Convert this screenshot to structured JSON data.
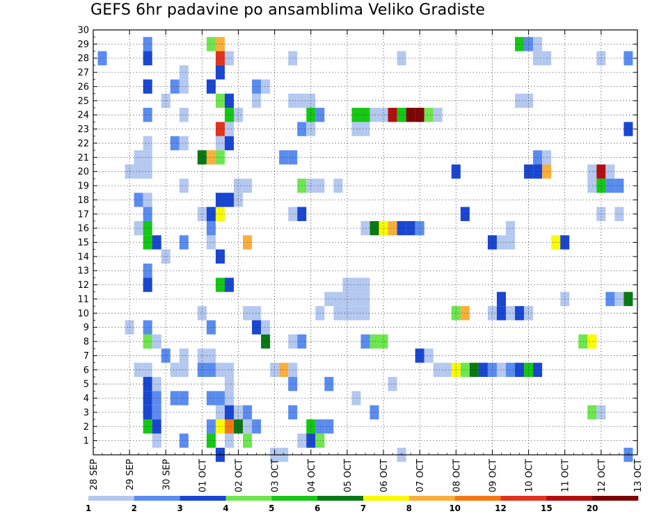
{
  "chart_data": {
    "type": "heatmap",
    "title": "GEFS 6hr padavine po ansamblima Veliko Gradiste",
    "x_tick_labels": [
      "28 SEP",
      "29 SEP",
      "30 SEP",
      "01 OCT",
      "02 OCT",
      "03 OCT",
      "04 OCT",
      "05 OCT",
      "06 OCT",
      "07 OCT",
      "08 OCT",
      "09 OCT",
      "10 OCT",
      "11 OCT",
      "12 OCT",
      "13 OCT"
    ],
    "xlim_days": [
      0,
      15
    ],
    "time_step_hours": 6,
    "ylim": [
      0,
      30
    ],
    "y_ticks": [
      1,
      2,
      3,
      4,
      5,
      6,
      7,
      8,
      9,
      10,
      11,
      12,
      13,
      14,
      15,
      16,
      17,
      18,
      19,
      20,
      21,
      22,
      23,
      24,
      25,
      26,
      27,
      28,
      29,
      30
    ],
    "grid": true,
    "colorbar": {
      "tick_labels": [
        "1",
        "2",
        "3",
        "4",
        "5",
        "6",
        "7",
        "8",
        "10",
        "12",
        "15",
        "20"
      ],
      "colors": [
        "#b4c8f0",
        "#5a8cf0",
        "#1a46d2",
        "#6ee650",
        "#14c814",
        "#0a7814",
        "#fafa00",
        "#faaf3c",
        "#f57814",
        "#e1321e",
        "#b40f0f",
        "#7d0505"
      ]
    },
    "cells": [
      {
        "x": 1.75,
        "y": 1,
        "c": 1
      },
      {
        "x": 2.5,
        "y": 1,
        "c": 2
      },
      {
        "x": 3.25,
        "y": 1,
        "c": 5
      },
      {
        "x": 3.75,
        "y": 1,
        "c": 1
      },
      {
        "x": 4.25,
        "y": 1,
        "c": 4
      },
      {
        "x": 5.75,
        "y": 1,
        "c": 1
      },
      {
        "x": 6,
        "y": 1,
        "c": 3
      },
      {
        "x": 6.25,
        "y": 1,
        "c": 4
      },
      {
        "x": 1.5,
        "y": 2,
        "c": 5
      },
      {
        "x": 1.75,
        "y": 2,
        "c": 3
      },
      {
        "x": 3.25,
        "y": 2,
        "c": 2
      },
      {
        "x": 3.5,
        "y": 2,
        "c": 7
      },
      {
        "x": 3.75,
        "y": 2,
        "c": 9
      },
      {
        "x": 4,
        "y": 2,
        "c": 6
      },
      {
        "x": 4.25,
        "y": 2,
        "c": 1
      },
      {
        "x": 4.5,
        "y": 2,
        "c": 2
      },
      {
        "x": 6,
        "y": 2,
        "c": 5
      },
      {
        "x": 6.25,
        "y": 2,
        "c": 2
      },
      {
        "x": 6.5,
        "y": 2,
        "c": 2
      },
      {
        "x": 1.5,
        "y": 3,
        "c": 3
      },
      {
        "x": 1.75,
        "y": 3,
        "c": 2
      },
      {
        "x": 3.5,
        "y": 3,
        "c": 1
      },
      {
        "x": 3.75,
        "y": 3,
        "c": 3
      },
      {
        "x": 4,
        "y": 3,
        "c": 1
      },
      {
        "x": 4.25,
        "y": 3,
        "c": 2
      },
      {
        "x": 5.5,
        "y": 3,
        "c": 2
      },
      {
        "x": 7.75,
        "y": 3,
        "c": 2
      },
      {
        "x": 13.75,
        "y": 3,
        "c": 4
      },
      {
        "x": 14,
        "y": 3,
        "c": 1
      },
      {
        "x": 1.5,
        "y": 4,
        "c": 3
      },
      {
        "x": 1.75,
        "y": 4,
        "c": 2
      },
      {
        "x": 2.25,
        "y": 4,
        "c": 2
      },
      {
        "x": 2.5,
        "y": 4,
        "c": 2
      },
      {
        "x": 3.25,
        "y": 4,
        "c": 2
      },
      {
        "x": 3.5,
        "y": 4,
        "c": 2
      },
      {
        "x": 3.75,
        "y": 4,
        "c": 1
      },
      {
        "x": 7.25,
        "y": 4,
        "c": 1
      },
      {
        "x": 1.5,
        "y": 5,
        "c": 3
      },
      {
        "x": 1.75,
        "y": 5,
        "c": 1
      },
      {
        "x": 3.75,
        "y": 5,
        "c": 1
      },
      {
        "x": 5.5,
        "y": 5,
        "c": 2
      },
      {
        "x": 6.5,
        "y": 5,
        "c": 2
      },
      {
        "x": 8.25,
        "y": 5,
        "c": 1
      },
      {
        "x": 1.25,
        "y": 6,
        "c": 1
      },
      {
        "x": 1.5,
        "y": 6,
        "c": 1
      },
      {
        "x": 2.25,
        "y": 6,
        "c": 1
      },
      {
        "x": 2.5,
        "y": 6,
        "c": 1
      },
      {
        "x": 3,
        "y": 6,
        "c": 2
      },
      {
        "x": 3.25,
        "y": 6,
        "c": 2
      },
      {
        "x": 3.5,
        "y": 6,
        "c": 1
      },
      {
        "x": 3.75,
        "y": 6,
        "c": 1
      },
      {
        "x": 5,
        "y": 6,
        "c": 1
      },
      {
        "x": 5.25,
        "y": 6,
        "c": 8
      },
      {
        "x": 5.5,
        "y": 6,
        "c": 1
      },
      {
        "x": 9.5,
        "y": 6,
        "c": 1
      },
      {
        "x": 9.75,
        "y": 6,
        "c": 1
      },
      {
        "x": 10,
        "y": 6,
        "c": 7
      },
      {
        "x": 10.25,
        "y": 6,
        "c": 4
      },
      {
        "x": 10.5,
        "y": 6,
        "c": 6
      },
      {
        "x": 10.75,
        "y": 6,
        "c": 3
      },
      {
        "x": 11,
        "y": 6,
        "c": 2
      },
      {
        "x": 11.25,
        "y": 6,
        "c": 1
      },
      {
        "x": 11.5,
        "y": 6,
        "c": 2
      },
      {
        "x": 11.75,
        "y": 6,
        "c": 3
      },
      {
        "x": 12,
        "y": 6,
        "c": 5
      },
      {
        "x": 12.25,
        "y": 6,
        "c": 3
      },
      {
        "x": 2,
        "y": 7,
        "c": 2
      },
      {
        "x": 2.5,
        "y": 7,
        "c": 1
      },
      {
        "x": 3,
        "y": 7,
        "c": 1
      },
      {
        "x": 3.25,
        "y": 7,
        "c": 1
      },
      {
        "x": 9,
        "y": 7,
        "c": 3
      },
      {
        "x": 9.25,
        "y": 7,
        "c": 1
      },
      {
        "x": 1.5,
        "y": 8,
        "c": 4
      },
      {
        "x": 1.75,
        "y": 8,
        "c": 1
      },
      {
        "x": 4.75,
        "y": 8,
        "c": 6
      },
      {
        "x": 5.5,
        "y": 8,
        "c": 1
      },
      {
        "x": 5.75,
        "y": 8,
        "c": 2
      },
      {
        "x": 7.5,
        "y": 8,
        "c": 2
      },
      {
        "x": 7.75,
        "y": 8,
        "c": 4
      },
      {
        "x": 8,
        "y": 8,
        "c": 4
      },
      {
        "x": 13.5,
        "y": 8,
        "c": 4
      },
      {
        "x": 13.75,
        "y": 8,
        "c": 7
      },
      {
        "x": 1,
        "y": 9,
        "c": 1
      },
      {
        "x": 1.5,
        "y": 9,
        "c": 2
      },
      {
        "x": 3.25,
        "y": 9,
        "c": 2
      },
      {
        "x": 4.5,
        "y": 9,
        "c": 3
      },
      {
        "x": 4.75,
        "y": 9,
        "c": 1
      },
      {
        "x": 3,
        "y": 10,
        "c": 1
      },
      {
        "x": 4.25,
        "y": 10,
        "c": 1
      },
      {
        "x": 4.5,
        "y": 10,
        "c": 1
      },
      {
        "x": 6.25,
        "y": 10,
        "c": 1
      },
      {
        "x": 6.75,
        "y": 10,
        "c": 1
      },
      {
        "x": 7,
        "y": 10,
        "c": 1
      },
      {
        "x": 7.25,
        "y": 10,
        "c": 1
      },
      {
        "x": 7.5,
        "y": 10,
        "c": 1
      },
      {
        "x": 10,
        "y": 10,
        "c": 4
      },
      {
        "x": 10.25,
        "y": 10,
        "c": 8
      },
      {
        "x": 11,
        "y": 10,
        "c": 1
      },
      {
        "x": 11.25,
        "y": 10,
        "c": 3
      },
      {
        "x": 11.5,
        "y": 10,
        "c": 1
      },
      {
        "x": 11.75,
        "y": 10,
        "c": 3
      },
      {
        "x": 12,
        "y": 10,
        "c": 1
      },
      {
        "x": 6.5,
        "y": 11,
        "c": 1
      },
      {
        "x": 6.75,
        "y": 11,
        "c": 1
      },
      {
        "x": 7,
        "y": 11,
        "c": 1
      },
      {
        "x": 7.25,
        "y": 11,
        "c": 1
      },
      {
        "x": 7.5,
        "y": 11,
        "c": 1
      },
      {
        "x": 11.25,
        "y": 11,
        "c": 3
      },
      {
        "x": 13,
        "y": 11,
        "c": 1
      },
      {
        "x": 14.25,
        "y": 11,
        "c": 2
      },
      {
        "x": 14.5,
        "y": 11,
        "c": 1
      },
      {
        "x": 14.75,
        "y": 11,
        "c": 6
      },
      {
        "x": 1.5,
        "y": 12,
        "c": 3
      },
      {
        "x": 3.5,
        "y": 12,
        "c": 5
      },
      {
        "x": 3.75,
        "y": 12,
        "c": 3
      },
      {
        "x": 7,
        "y": 12,
        "c": 1
      },
      {
        "x": 7.25,
        "y": 12,
        "c": 1
      },
      {
        "x": 7.5,
        "y": 12,
        "c": 1
      },
      {
        "x": 1.5,
        "y": 13,
        "c": 2
      },
      {
        "x": 2,
        "y": 14,
        "c": 1
      },
      {
        "x": 3.5,
        "y": 14,
        "c": 3
      },
      {
        "x": 1.5,
        "y": 15,
        "c": 5
      },
      {
        "x": 1.75,
        "y": 15,
        "c": 3
      },
      {
        "x": 2.5,
        "y": 15,
        "c": 2
      },
      {
        "x": 3.25,
        "y": 15,
        "c": 1
      },
      {
        "x": 4.25,
        "y": 15,
        "c": 8
      },
      {
        "x": 11,
        "y": 15,
        "c": 3
      },
      {
        "x": 11.25,
        "y": 15,
        "c": 1
      },
      {
        "x": 11.5,
        "y": 15,
        "c": 1
      },
      {
        "x": 12.75,
        "y": 15,
        "c": 7
      },
      {
        "x": 13,
        "y": 15,
        "c": 3
      },
      {
        "x": 1.25,
        "y": 16,
        "c": 1
      },
      {
        "x": 1.5,
        "y": 16,
        "c": 5
      },
      {
        "x": 3.25,
        "y": 16,
        "c": 2
      },
      {
        "x": 7.75,
        "y": 16,
        "c": 6
      },
      {
        "x": 8,
        "y": 16,
        "c": 7
      },
      {
        "x": 8.25,
        "y": 16,
        "c": 8
      },
      {
        "x": 8.5,
        "y": 16,
        "c": 3
      },
      {
        "x": 8.75,
        "y": 16,
        "c": 3
      },
      {
        "x": 9,
        "y": 16,
        "c": 2
      },
      {
        "x": 7.5,
        "y": 16,
        "c": 1
      },
      {
        "x": 11.5,
        "y": 16,
        "c": 1
      },
      {
        "x": 1.5,
        "y": 17,
        "c": 2
      },
      {
        "x": 3,
        "y": 17,
        "c": 1
      },
      {
        "x": 3.25,
        "y": 17,
        "c": 3
      },
      {
        "x": 3.5,
        "y": 17,
        "c": 7
      },
      {
        "x": 5.5,
        "y": 17,
        "c": 1
      },
      {
        "x": 5.75,
        "y": 17,
        "c": 3
      },
      {
        "x": 10.25,
        "y": 17,
        "c": 3
      },
      {
        "x": 14,
        "y": 17,
        "c": 1
      },
      {
        "x": 14.5,
        "y": 17,
        "c": 1
      },
      {
        "x": 1.25,
        "y": 18,
        "c": 2
      },
      {
        "x": 1.5,
        "y": 18,
        "c": 1
      },
      {
        "x": 3.5,
        "y": 18,
        "c": 3
      },
      {
        "x": 3.75,
        "y": 18,
        "c": 3
      },
      {
        "x": 4,
        "y": 18,
        "c": 1
      },
      {
        "x": 2.5,
        "y": 19,
        "c": 1
      },
      {
        "x": 4,
        "y": 19,
        "c": 1
      },
      {
        "x": 4.25,
        "y": 19,
        "c": 1
      },
      {
        "x": 5.75,
        "y": 19,
        "c": 4
      },
      {
        "x": 6,
        "y": 19,
        "c": 1
      },
      {
        "x": 6.25,
        "y": 19,
        "c": 1
      },
      {
        "x": 6.75,
        "y": 19,
        "c": 1
      },
      {
        "x": 13.75,
        "y": 19,
        "c": 1
      },
      {
        "x": 14,
        "y": 19,
        "c": 5
      },
      {
        "x": 14.25,
        "y": 19,
        "c": 2
      },
      {
        "x": 14.5,
        "y": 19,
        "c": 2
      },
      {
        "x": 1,
        "y": 20,
        "c": 1
      },
      {
        "x": 1.25,
        "y": 20,
        "c": 1
      },
      {
        "x": 1.5,
        "y": 20,
        "c": 1
      },
      {
        "x": 10,
        "y": 20,
        "c": 3
      },
      {
        "x": 12,
        "y": 20,
        "c": 3
      },
      {
        "x": 12.25,
        "y": 20,
        "c": 3
      },
      {
        "x": 12.5,
        "y": 20,
        "c": 8
      },
      {
        "x": 13.75,
        "y": 20,
        "c": 1
      },
      {
        "x": 14,
        "y": 20,
        "c": 11
      },
      {
        "x": 14.25,
        "y": 20,
        "c": 1
      },
      {
        "x": 1.25,
        "y": 21,
        "c": 1
      },
      {
        "x": 1.5,
        "y": 21,
        "c": 1
      },
      {
        "x": 3,
        "y": 21,
        "c": 6
      },
      {
        "x": 3.25,
        "y": 21,
        "c": 8
      },
      {
        "x": 3.5,
        "y": 21,
        "c": 4
      },
      {
        "x": 5.25,
        "y": 21,
        "c": 2
      },
      {
        "x": 5.5,
        "y": 21,
        "c": 2
      },
      {
        "x": 12.25,
        "y": 21,
        "c": 2
      },
      {
        "x": 12.5,
        "y": 21,
        "c": 1
      },
      {
        "x": 1.5,
        "y": 22,
        "c": 1
      },
      {
        "x": 2.25,
        "y": 22,
        "c": 2
      },
      {
        "x": 2.5,
        "y": 22,
        "c": 1
      },
      {
        "x": 3.5,
        "y": 22,
        "c": 1
      },
      {
        "x": 3.75,
        "y": 22,
        "c": 3
      },
      {
        "x": 3.5,
        "y": 23,
        "c": 10
      },
      {
        "x": 3.75,
        "y": 23,
        "c": 1
      },
      {
        "x": 5.75,
        "y": 23,
        "c": 2
      },
      {
        "x": 6,
        "y": 23,
        "c": 1
      },
      {
        "x": 7.25,
        "y": 23,
        "c": 1
      },
      {
        "x": 7.5,
        "y": 23,
        "c": 1
      },
      {
        "x": 14.75,
        "y": 23,
        "c": 3
      },
      {
        "x": 1.5,
        "y": 24,
        "c": 2
      },
      {
        "x": 2.5,
        "y": 24,
        "c": 1
      },
      {
        "x": 3.75,
        "y": 24,
        "c": 5
      },
      {
        "x": 4,
        "y": 24,
        "c": 1
      },
      {
        "x": 6,
        "y": 24,
        "c": 5
      },
      {
        "x": 6.25,
        "y": 24,
        "c": 2
      },
      {
        "x": 7.25,
        "y": 24,
        "c": 5
      },
      {
        "x": 7.5,
        "y": 24,
        "c": 5
      },
      {
        "x": 7.75,
        "y": 24,
        "c": 1
      },
      {
        "x": 8,
        "y": 24,
        "c": 1
      },
      {
        "x": 8.25,
        "y": 24,
        "c": 11
      },
      {
        "x": 8.5,
        "y": 24,
        "c": 5
      },
      {
        "x": 8.75,
        "y": 24,
        "c": 12
      },
      {
        "x": 9,
        "y": 24,
        "c": 12
      },
      {
        "x": 9.25,
        "y": 24,
        "c": 4
      },
      {
        "x": 9.5,
        "y": 24,
        "c": 1
      },
      {
        "x": 2,
        "y": 25,
        "c": 1
      },
      {
        "x": 3.5,
        "y": 25,
        "c": 4
      },
      {
        "x": 3.75,
        "y": 25,
        "c": 3
      },
      {
        "x": 4.5,
        "y": 25,
        "c": 1
      },
      {
        "x": 5.5,
        "y": 25,
        "c": 1
      },
      {
        "x": 5.75,
        "y": 25,
        "c": 1
      },
      {
        "x": 6,
        "y": 25,
        "c": 1
      },
      {
        "x": 11.75,
        "y": 25,
        "c": 1
      },
      {
        "x": 12,
        "y": 25,
        "c": 1
      },
      {
        "x": 1.5,
        "y": 26,
        "c": 3
      },
      {
        "x": 2.25,
        "y": 26,
        "c": 2
      },
      {
        "x": 2.5,
        "y": 26,
        "c": 1
      },
      {
        "x": 3.25,
        "y": 26,
        "c": 3
      },
      {
        "x": 4.5,
        "y": 26,
        "c": 2
      },
      {
        "x": 4.75,
        "y": 26,
        "c": 1
      },
      {
        "x": 2.5,
        "y": 27,
        "c": 1
      },
      {
        "x": 3.5,
        "y": 27,
        "c": 3
      },
      {
        "x": 0.25,
        "y": 28,
        "c": 2
      },
      {
        "x": 1.5,
        "y": 28,
        "c": 3
      },
      {
        "x": 3.5,
        "y": 28,
        "c": 10
      },
      {
        "x": 3.75,
        "y": 28,
        "c": 1
      },
      {
        "x": 5.5,
        "y": 28,
        "c": 1
      },
      {
        "x": 8.5,
        "y": 28,
        "c": 1
      },
      {
        "x": 12.25,
        "y": 28,
        "c": 1
      },
      {
        "x": 12.5,
        "y": 28,
        "c": 1
      },
      {
        "x": 14,
        "y": 28,
        "c": 1
      },
      {
        "x": 14.75,
        "y": 28,
        "c": 2
      },
      {
        "x": 1.5,
        "y": 29,
        "c": 2
      },
      {
        "x": 3.25,
        "y": 29,
        "c": 4
      },
      {
        "x": 3.5,
        "y": 29,
        "c": 8
      },
      {
        "x": 11.75,
        "y": 29,
        "c": 5
      },
      {
        "x": 12,
        "y": 29,
        "c": 2
      },
      {
        "x": 12.25,
        "y": 29,
        "c": 1
      },
      {
        "x": 3.5,
        "y": 0,
        "c": 3
      },
      {
        "x": 5,
        "y": 0,
        "c": 1
      },
      {
        "x": 5.25,
        "y": 0,
        "c": 1
      },
      {
        "x": 8.5,
        "y": 0,
        "c": 1
      },
      {
        "x": 14.75,
        "y": 0,
        "c": 2
      }
    ]
  }
}
